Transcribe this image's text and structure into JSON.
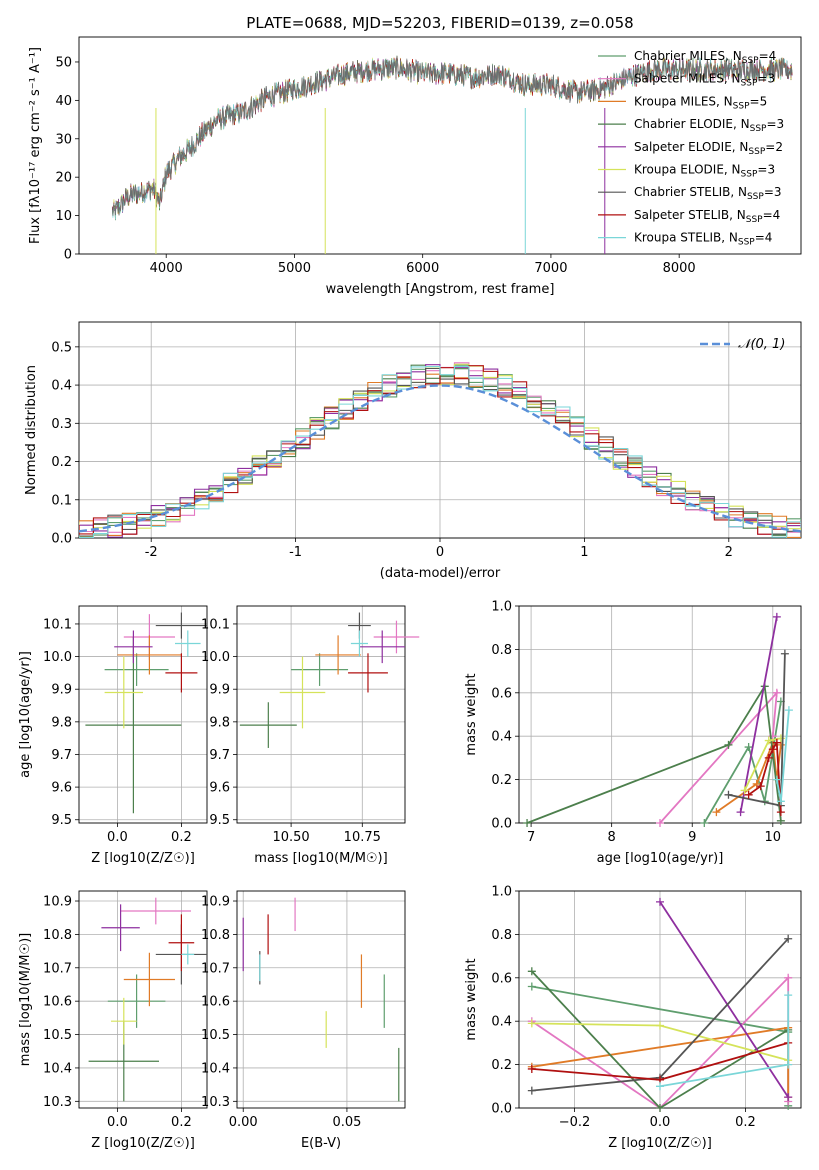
{
  "figure_title": "PLATE=0688, MJD=52203, FIBERID=0139, z=0.058",
  "model_colors": [
    "#5f9e6e",
    "#e377c2",
    "#e07b27",
    "#4c7f4c",
    "#8e2f9f",
    "#d5e35a",
    "#555555",
    "#b01010",
    "#7ad6d8"
  ],
  "chart_data": [
    {
      "id": "spectrum",
      "type": "line",
      "title": "PLATE=0688, MJD=52203, FIBERID=0139, z=0.058",
      "xlabel": "wavelength [Angstrom, rest frame]",
      "ylabel": "Flux [fλ10⁻¹⁷ erg cm⁻² s⁻¹ A⁻¹]",
      "xlim": [
        3320,
        8950
      ],
      "ylim": [
        0,
        56.5
      ],
      "xticks": [
        4000,
        5000,
        6000,
        7000,
        8000
      ],
      "yticks": [
        0,
        10,
        20,
        30,
        40,
        50
      ],
      "grid": false,
      "legend_placement": "top-right",
      "legend": [
        "Chabrier MILES, N_SSP=4",
        "Salpeter MILES, N_SSP=3",
        "Kroupa MILES, N_SSP=5",
        "Chabrier ELODIE, N_SSP=3",
        "Salpeter ELODIE, N_SSP=2",
        "Kroupa ELODIE, N_SSP=3",
        "Chabrier STELIB, N_SSP=3",
        "Salpeter STELIB, N_SSP=4",
        "Kroupa STELIB, N_SSP=4"
      ],
      "continuum_x": [
        3600,
        3700,
        3800,
        3900,
        3950,
        4000,
        4100,
        4200,
        4300,
        4400,
        4500,
        4600,
        4800,
        5000,
        5200,
        5400,
        5600,
        5800,
        6000,
        6200,
        6400,
        6600,
        6800,
        7000,
        7200,
        7400,
        7600,
        7800
      ],
      "continuum_y": [
        11,
        15,
        16,
        17,
        13,
        21,
        25,
        28,
        32,
        35,
        36,
        37,
        41,
        43,
        45,
        47,
        48,
        48.5,
        47,
        47,
        46,
        47,
        44,
        44,
        42,
        43,
        46,
        48
      ],
      "data_range": [
        3580,
        8880
      ]
    },
    {
      "id": "residuals",
      "type": "histogram",
      "xlabel": "(data-model)/error",
      "ylabel": "Normed distribution",
      "xlim": [
        -2.5,
        2.5
      ],
      "ylim": [
        0,
        0.565
      ],
      "xticks": [
        -2,
        -1,
        0,
        1,
        2
      ],
      "yticks": [
        0.0,
        0.1,
        0.2,
        0.3,
        0.4,
        0.5
      ],
      "grid": true,
      "legend_placement": "top-right",
      "reference_curve": {
        "name": "𝒩(0, 1)",
        "mean": 0,
        "sigma": 1,
        "style": "dashed"
      },
      "bin_width": 0.1
    },
    {
      "id": "age_vs_Z",
      "type": "errorbar",
      "xlabel": "Z [log10(Z/Z☉)]",
      "ylabel": "age [log10(age/yr)]",
      "xlim": [
        -0.12,
        0.28
      ],
      "ylim": [
        9.49,
        10.155
      ],
      "xticks": [
        0.0,
        0.2
      ],
      "yticks": [
        9.5,
        9.6,
        9.7,
        9.8,
        9.9,
        10.0,
        10.1
      ],
      "grid": true,
      "points": [
        {
          "model": 0,
          "x": 0.06,
          "xerr": 0.1,
          "y": 9.96,
          "yerr": 0.05
        },
        {
          "model": 1,
          "x": 0.1,
          "xerr": 0.08,
          "y": 10.06,
          "yerr": 0.07
        },
        {
          "model": 2,
          "x": 0.1,
          "xerr": 0.1,
          "y": 10.005,
          "yerr": 0.06
        },
        {
          "model": 3,
          "x": 0.05,
          "xerr": 0.15,
          "y": 9.79,
          "yerr": 0.27
        },
        {
          "model": 4,
          "x": 0.05,
          "xerr": 0.06,
          "y": 10.03,
          "yerr": 0.05
        },
        {
          "model": 5,
          "x": 0.02,
          "xerr": 0.06,
          "y": 9.89,
          "yerr": 0.11
        },
        {
          "model": 6,
          "x": 0.2,
          "xerr": 0.08,
          "y": 10.095,
          "yerr": 0.04
        },
        {
          "model": 7,
          "x": 0.2,
          "xerr": 0.05,
          "y": 9.95,
          "yerr": 0.06
        },
        {
          "model": 8,
          "x": 0.22,
          "xerr": 0.04,
          "y": 10.04,
          "yerr": 0.04
        }
      ]
    },
    {
      "id": "age_vs_mass",
      "type": "errorbar",
      "xlabel": "mass [log10(M/M☉)]",
      "ylabel": "",
      "xlim": [
        10.31,
        10.9
      ],
      "ylim": [
        9.49,
        10.155
      ],
      "xticks": [
        10.5,
        10.75
      ],
      "xtick_labels": [
        "10.50",
        "10.75"
      ],
      "yticks": [
        9.5,
        9.6,
        9.7,
        9.8,
        9.9,
        10.0,
        10.1
      ],
      "grid": true,
      "points": [
        {
          "model": 0,
          "x": 10.6,
          "xerr": 0.1,
          "y": 9.96,
          "yerr": 0.05
        },
        {
          "model": 1,
          "x": 10.87,
          "xerr": 0.08,
          "y": 10.06,
          "yerr": 0.05
        },
        {
          "model": 2,
          "x": 10.665,
          "xerr": 0.08,
          "y": 10.005,
          "yerr": 0.06
        },
        {
          "model": 3,
          "x": 10.42,
          "xerr": 0.1,
          "y": 9.79,
          "yerr": 0.07
        },
        {
          "model": 4,
          "x": 10.82,
          "xerr": 0.08,
          "y": 10.03,
          "yerr": 0.05
        },
        {
          "model": 5,
          "x": 10.54,
          "xerr": 0.08,
          "y": 9.89,
          "yerr": 0.11
        },
        {
          "model": 6,
          "x": 10.74,
          "xerr": 0.04,
          "y": 10.095,
          "yerr": 0.04
        },
        {
          "model": 7,
          "x": 10.77,
          "xerr": 0.07,
          "y": 9.95,
          "yerr": 0.06
        },
        {
          "model": 8,
          "x": 10.74,
          "xerr": 0.03,
          "y": 10.04,
          "yerr": 0.04
        }
      ]
    },
    {
      "id": "weight_vs_age",
      "type": "line",
      "xlabel": "age [log10(age/yr)]",
      "ylabel": "mass weight",
      "xlim": [
        6.85,
        10.35
      ],
      "ylim": [
        0,
        1
      ],
      "xticks": [
        7,
        8,
        9,
        10
      ],
      "yticks": [
        0.0,
        0.2,
        0.4,
        0.6,
        0.8,
        1.0
      ],
      "grid": true,
      "series": [
        {
          "model": 0,
          "x": [
            9.15,
            9.7,
            9.9,
            10.1
          ],
          "y": [
            0.0,
            0.35,
            0.1,
            0.56
          ]
        },
        {
          "model": 1,
          "x": [
            8.6,
            10.05,
            10.0
          ],
          "y": [
            0.0,
            0.6,
            0.4
          ]
        },
        {
          "model": 2,
          "x": [
            9.3,
            9.8,
            10.0,
            10.05,
            10.1
          ],
          "y": [
            0.05,
            0.18,
            0.37,
            0.2,
            0.36
          ]
        },
        {
          "model": 3,
          "x": [
            6.95,
            9.45,
            9.9,
            10.1
          ],
          "y": [
            0.0,
            0.36,
            0.63,
            0.01
          ]
        },
        {
          "model": 4,
          "x": [
            9.6,
            10.05
          ],
          "y": [
            0.05,
            0.95
          ]
        },
        {
          "model": 5,
          "x": [
            9.65,
            9.95,
            10.1
          ],
          "y": [
            0.15,
            0.38,
            0.39
          ]
        },
        {
          "model": 6,
          "x": [
            9.45,
            10.1,
            10.15
          ],
          "y": [
            0.13,
            0.08,
            0.78
          ]
        },
        {
          "model": 7,
          "x": [
            9.7,
            9.85,
            9.95,
            10.0,
            10.05,
            10.1
          ],
          "y": [
            0.13,
            0.17,
            0.3,
            0.34,
            0.37,
            0.05
          ]
        },
        {
          "model": 8,
          "x": [
            10.05,
            10.1,
            10.2
          ],
          "y": [
            0.2,
            0.1,
            0.52
          ]
        }
      ]
    },
    {
      "id": "mass_vs_Z",
      "type": "errorbar",
      "xlabel": "Z [log10(Z/Z☉)]",
      "ylabel": "mass [log10(M/M☉)]",
      "xlim": [
        -0.12,
        0.28
      ],
      "ylim": [
        10.28,
        10.93
      ],
      "xticks": [
        0.0,
        0.2
      ],
      "yticks": [
        10.3,
        10.4,
        10.5,
        10.6,
        10.7,
        10.8,
        10.9
      ],
      "grid": true,
      "points": [
        {
          "model": 0,
          "x": 0.06,
          "xerr": 0.09,
          "y": 10.6,
          "yerr": 0.08
        },
        {
          "model": 1,
          "x": 0.12,
          "xerr": 0.11,
          "y": 10.87,
          "yerr": 0.04
        },
        {
          "model": 2,
          "x": 0.1,
          "xerr": 0.08,
          "y": 10.665,
          "yerr": 0.08
        },
        {
          "model": 3,
          "x": 0.02,
          "xerr": 0.11,
          "y": 10.42,
          "yerr": 0.12
        },
        {
          "model": 4,
          "x": 0.01,
          "xerr": 0.06,
          "y": 10.82,
          "yerr": 0.07
        },
        {
          "model": 5,
          "x": 0.02,
          "xerr": 0.04,
          "y": 10.54,
          "yerr": 0.07
        },
        {
          "model": 6,
          "x": 0.2,
          "xerr": 0.08,
          "y": 10.74,
          "yerr": 0.09
        },
        {
          "model": 7,
          "x": 0.2,
          "xerr": 0.04,
          "y": 10.775,
          "yerr": 0.085
        },
        {
          "model": 8,
          "x": 0.22,
          "xerr": 0.02,
          "y": 10.74,
          "yerr": 0.03
        }
      ]
    },
    {
      "id": "mass_vs_ebv",
      "type": "errorbar",
      "xlabel": "E(B-V)",
      "ylabel": "",
      "xlim": [
        -0.003,
        0.078
      ],
      "ylim": [
        10.28,
        10.93
      ],
      "xticks": [
        0.0,
        0.05
      ],
      "xtick_labels": [
        "0.00",
        "0.05"
      ],
      "yticks": [
        10.3,
        10.4,
        10.5,
        10.6,
        10.7,
        10.8,
        10.9
      ],
      "grid": true,
      "points": [
        {
          "model": 0,
          "x": 0.068,
          "xerr": 0,
          "y": 10.6,
          "yerr": 0.08
        },
        {
          "model": 1,
          "x": 0.025,
          "xerr": 0,
          "y": 10.86,
          "yerr": 0.05
        },
        {
          "model": 2,
          "x": 0.057,
          "xerr": 0,
          "y": 10.66,
          "yerr": 0.08
        },
        {
          "model": 3,
          "x": 0.075,
          "xerr": 0,
          "y": 10.38,
          "yerr": 0.08
        },
        {
          "model": 4,
          "x": 0.0,
          "xerr": 0,
          "y": 10.77,
          "yerr": 0.08
        },
        {
          "model": 5,
          "x": 0.04,
          "xerr": 0,
          "y": 10.515,
          "yerr": 0.055
        },
        {
          "model": 6,
          "x": 0.008,
          "xerr": 0,
          "y": 10.7,
          "yerr": 0.05
        },
        {
          "model": 7,
          "x": 0.012,
          "xerr": 0,
          "y": 10.8,
          "yerr": 0.06
        },
        {
          "model": 8,
          "x": 0.008,
          "xerr": 0,
          "y": 10.7,
          "yerr": 0.04
        }
      ]
    },
    {
      "id": "weight_vs_Z",
      "type": "line",
      "xlabel": "Z [log10(Z/Z☉)]",
      "ylabel": "mass weight",
      "xlim": [
        -0.33,
        0.33
      ],
      "ylim": [
        0,
        1
      ],
      "xticks": [
        -0.2,
        0.0,
        0.2
      ],
      "yticks": [
        0.0,
        0.2,
        0.4,
        0.6,
        0.8,
        1.0
      ],
      "grid": true,
      "series": [
        {
          "model": 0,
          "x": [
            -0.3,
            0.3,
            0.3
          ],
          "y": [
            0.56,
            0.35,
            0.01
          ]
        },
        {
          "model": 1,
          "x": [
            -0.3,
            0.0,
            0.3,
            0.3
          ],
          "y": [
            0.4,
            0.0,
            0.6,
            0.03
          ]
        },
        {
          "model": 2,
          "x": [
            -0.3,
            0.3,
            0.3
          ],
          "y": [
            0.19,
            0.37,
            0.05
          ]
        },
        {
          "model": 3,
          "x": [
            -0.3,
            0.0,
            0.3
          ],
          "y": [
            0.63,
            0.0,
            0.36
          ]
        },
        {
          "model": 4,
          "x": [
            0.0,
            0.3
          ],
          "y": [
            0.95,
            0.05
          ]
        },
        {
          "model": 5,
          "x": [
            -0.3,
            0.0,
            0.3
          ],
          "y": [
            0.39,
            0.38,
            0.22
          ]
        },
        {
          "model": 6,
          "x": [
            -0.3,
            0.0,
            0.3
          ],
          "y": [
            0.08,
            0.14,
            0.78
          ]
        },
        {
          "model": 7,
          "x": [
            -0.3,
            0.0,
            0.3
          ],
          "y": [
            0.18,
            0.13,
            0.3
          ]
        },
        {
          "model": 8,
          "x": [
            0.0,
            0.3,
            0.3
          ],
          "y": [
            0.1,
            0.2,
            0.52
          ]
        }
      ]
    }
  ]
}
